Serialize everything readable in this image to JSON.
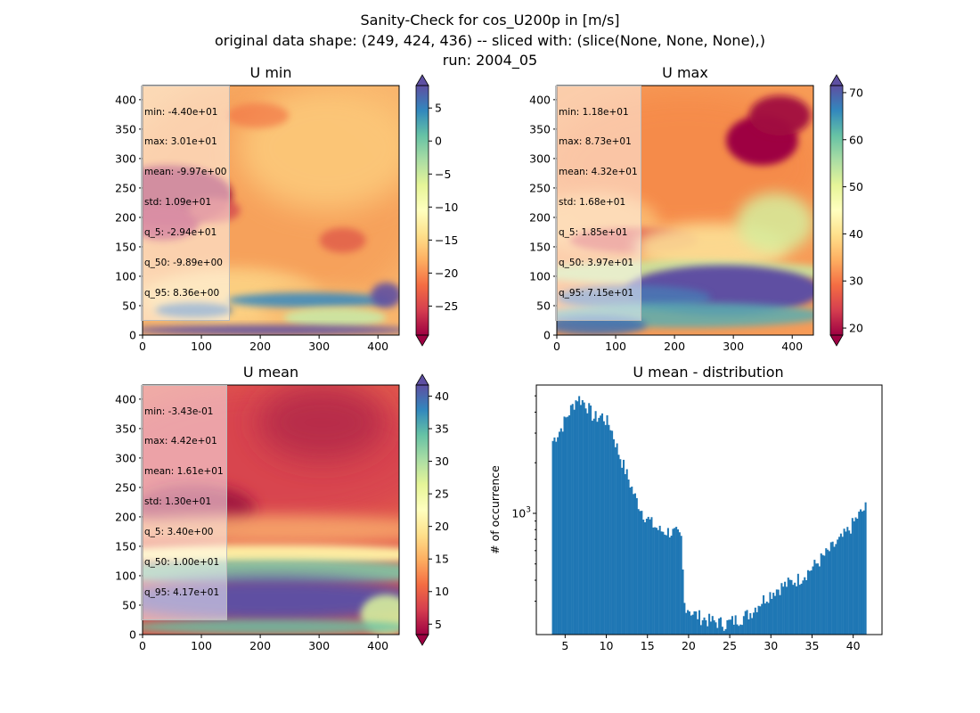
{
  "suptitle": {
    "line1": "Sanity-Check for cos_U200p in [m/s]",
    "line2": "original data shape: (249, 424, 436) -- sliced with: (slice(None, None, None),)",
    "line3": "run: 2004_05"
  },
  "colormap": [
    "#9e0142",
    "#d53e4f",
    "#f46d43",
    "#fdae61",
    "#fee08b",
    "#ffffbf",
    "#e6f598",
    "#abdda4",
    "#66c2a5",
    "#3288bd",
    "#5e4fa2"
  ],
  "chart_data": [
    {
      "type": "heatmap",
      "title": "U min",
      "x_ticks": [
        "0",
        "100",
        "200",
        "300",
        "400"
      ],
      "y_ticks": [
        "0",
        "50",
        "100",
        "150",
        "200",
        "250",
        "300",
        "350",
        "400"
      ],
      "xlim": [
        0,
        436
      ],
      "ylim": [
        0,
        424
      ],
      "colorbar": {
        "range": [
          -29.4,
          8.4
        ],
        "ticks": [
          "5",
          "0",
          "−5",
          "−10",
          "−15",
          "−20",
          "−25"
        ],
        "tick_values": [
          5,
          0,
          -5,
          -10,
          -15,
          -20,
          -25
        ],
        "extend": "both"
      },
      "stats": [
        "min: -4.40e+01",
        "max: 3.01e+01",
        "mean: -9.97e+00",
        "std: 1.09e+01",
        "q_5: -2.94e+01",
        "q_50: -9.89e+00",
        "q_95: 8.36e+00"
      ]
    },
    {
      "type": "heatmap",
      "title": "U max",
      "x_ticks": [
        "0",
        "100",
        "200",
        "300",
        "400"
      ],
      "y_ticks": [
        "0",
        "50",
        "100",
        "150",
        "200",
        "250",
        "300",
        "350",
        "400"
      ],
      "xlim": [
        0,
        436
      ],
      "ylim": [
        0,
        424
      ],
      "colorbar": {
        "range": [
          18.5,
          71.5
        ],
        "ticks": [
          "70",
          "60",
          "50",
          "40",
          "30",
          "20"
        ],
        "tick_values": [
          70,
          60,
          50,
          40,
          30,
          20
        ],
        "extend": "both"
      },
      "stats": [
        "min: 1.18e+01",
        "max: 8.73e+01",
        "mean: 4.32e+01",
        "std: 1.68e+01",
        "q_5: 1.85e+01",
        "q_50: 3.97e+01",
        "q_95: 7.15e+01"
      ]
    },
    {
      "type": "heatmap",
      "title": "U mean",
      "x_ticks": [
        "0",
        "100",
        "200",
        "300",
        "400"
      ],
      "y_ticks": [
        "0",
        "50",
        "100",
        "150",
        "200",
        "250",
        "300",
        "350",
        "400"
      ],
      "xlim": [
        0,
        436
      ],
      "ylim": [
        0,
        424
      ],
      "colorbar": {
        "range": [
          3.4,
          41.7
        ],
        "ticks": [
          "40",
          "35",
          "30",
          "25",
          "20",
          "15",
          "10",
          "5"
        ],
        "tick_values": [
          40,
          35,
          30,
          25,
          20,
          15,
          10,
          5
        ],
        "extend": "both"
      },
      "stats": [
        "min: -3.43e-01",
        "max: 4.42e+01",
        "mean: 1.61e+01",
        "std: 1.30e+01",
        "q_5: 3.40e+00",
        "q_50: 1.00e+01",
        "q_95: 4.17e+01"
      ]
    },
    {
      "type": "bar",
      "title": "U mean - distribution",
      "ylabel": "# of occurrence",
      "xlabel": "",
      "yscale": "log",
      "x_ticks": [
        "5",
        "10",
        "15",
        "20",
        "25",
        "30",
        "35",
        "40"
      ],
      "x_tick_values": [
        5,
        10,
        15,
        20,
        25,
        30,
        35,
        40
      ],
      "y_tick_label": "10³",
      "xlim": [
        1.5,
        43.5
      ],
      "ylim": [
        190,
        5800
      ],
      "color": "#1f77b4",
      "bins": {
        "x": [
          3.4,
          4.4,
          5.4,
          6.4,
          7.4,
          8.4,
          9.4,
          10.4,
          11.4,
          12.4,
          13.4,
          14.4,
          15.4,
          16.4,
          17.4,
          18.4,
          19.0,
          19.4,
          20.4,
          21.4,
          22.4,
          23.4,
          24.4,
          25.4,
          26.4,
          27.4,
          28.4,
          29.4,
          30.4,
          31.4,
          32.4,
          33.4,
          34.4,
          35.4,
          36.4,
          37.4,
          38.4,
          39.4,
          40.4,
          41.4
        ],
        "y": [
          2700,
          3200,
          4000,
          4900,
          4500,
          3700,
          3800,
          3300,
          2300,
          1700,
          1250,
          1000,
          870,
          790,
          780,
          760,
          700,
          290,
          255,
          240,
          230,
          225,
          220,
          230,
          240,
          255,
          290,
          320,
          350,
          370,
          390,
          410,
          450,
          500,
          560,
          630,
          700,
          800,
          950,
          1080
        ]
      }
    }
  ]
}
